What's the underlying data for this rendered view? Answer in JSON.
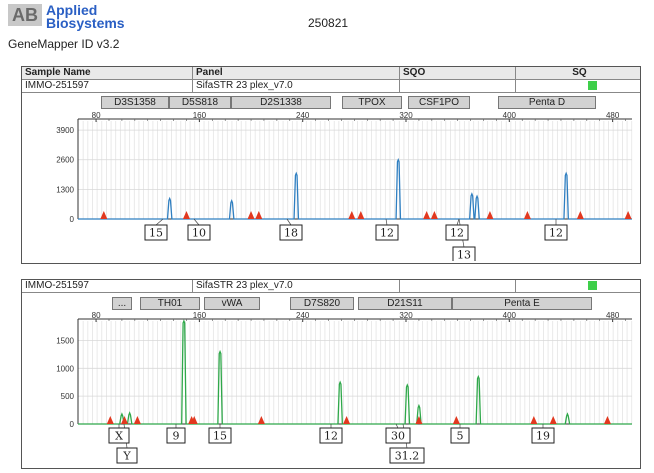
{
  "header": {
    "logo_mark": "AB",
    "brand_line1": "Applied",
    "brand_line2": "Biosystems",
    "software": "GeneMapper ID v3.2",
    "run_id": "250821"
  },
  "table_header": {
    "sample_name": "Sample Name",
    "panel": "Panel",
    "sqo": "SQO",
    "sq": "SQ"
  },
  "panel1": {
    "sample": "IMMO-251597",
    "panel_name": "SifaSTR 23 plex_v7.0",
    "status_color": "#3ecf4a",
    "markers": [
      "D3S1358",
      "D5S818",
      "D2S1338",
      "TPOX",
      "CSF1PO",
      "Penta D"
    ],
    "x_ticks": [
      "80",
      "160",
      "240",
      "320",
      "400",
      "480"
    ],
    "y_ticks": [
      "3900",
      "2600",
      "1300",
      "0"
    ],
    "dye_color": "#2f7fc1",
    "alleles": [
      "15",
      "10",
      "18",
      "12",
      "12",
      "13",
      "12"
    ]
  },
  "panel2": {
    "sample": "IMMO-251597",
    "panel_name": "SifaSTR 23 plex_v7.0",
    "status_color": "#3ecf4a",
    "markers": [
      "...",
      "TH01",
      "vWA",
      "D7S820",
      "D21S11",
      "Penta E"
    ],
    "x_ticks": [
      "80",
      "160",
      "240",
      "320",
      "400",
      "480"
    ],
    "y_ticks": [
      "1500",
      "1000",
      "500",
      "0"
    ],
    "dye_color": "#2fa84a",
    "alleles": [
      "X",
      "Y",
      "9",
      "15",
      "12",
      "30",
      "31.2",
      "5",
      "19"
    ]
  },
  "chart_data": [
    {
      "type": "line",
      "title": "",
      "xlabel": "",
      "ylabel": "",
      "xlim": [
        66,
        495
      ],
      "ylim": [
        0,
        4300
      ],
      "series": [
        {
          "color": "#2f7fc1",
          "peaks": [
            {
              "x": 137,
              "y": 900
            },
            {
              "x": 185,
              "y": 800
            },
            {
              "x": 235,
              "y": 2000
            },
            {
              "x": 314,
              "y": 2600
            },
            {
              "x": 371,
              "y": 1100
            },
            {
              "x": 375,
              "y": 1000
            },
            {
              "x": 444,
              "y": 2000
            }
          ]
        }
      ],
      "sizing_markers_x": [
        86,
        150,
        200,
        206,
        278,
        285,
        336,
        342,
        385,
        414,
        455,
        492
      ]
    },
    {
      "type": "line",
      "title": "",
      "xlabel": "",
      "ylabel": "",
      "xlim": [
        66,
        495
      ],
      "ylim": [
        0,
        1850
      ],
      "series": [
        {
          "color": "#2fa84a",
          "peaks": [
            {
              "x": 100,
              "y": 180
            },
            {
              "x": 106,
              "y": 200
            },
            {
              "x": 148,
              "y": 1850
            },
            {
              "x": 176,
              "y": 1300
            },
            {
              "x": 269,
              "y": 750
            },
            {
              "x": 321,
              "y": 700
            },
            {
              "x": 330,
              "y": 330
            },
            {
              "x": 376,
              "y": 850
            },
            {
              "x": 445,
              "y": 180
            }
          ]
        }
      ],
      "sizing_markers_x": [
        91,
        102,
        112,
        154,
        156,
        208,
        274,
        330,
        359,
        419,
        434,
        476
      ]
    }
  ]
}
